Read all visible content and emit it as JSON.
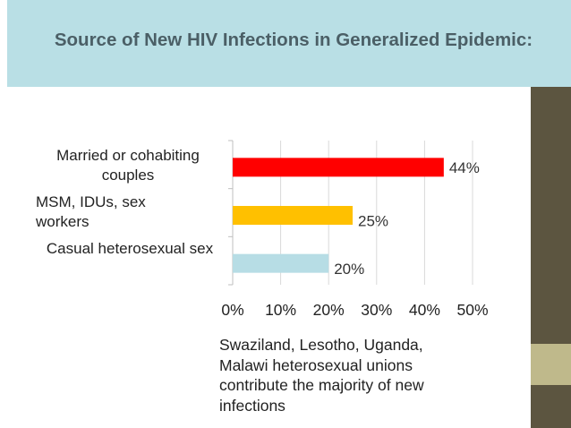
{
  "title": "Source of New HIV Infections in Generalized Epidemic:",
  "colors": {
    "title_bg": "#b9dfe5",
    "title_text": "#4b5f66",
    "strip_dark": "#5c5540",
    "strip_light": "#bfb98b"
  },
  "chart_data": {
    "type": "bar",
    "orientation": "horizontal",
    "categories": [
      "Married or cohabiting couples",
      "MSM, IDUs, sex workers",
      "Casual heterosexual sex"
    ],
    "values": [
      44,
      25,
      20
    ],
    "value_labels": [
      "44%",
      "25%",
      "20%"
    ],
    "bar_colors": [
      "#ff0000",
      "#ffc000",
      "#b7dde5"
    ],
    "xlim": [
      0,
      50
    ],
    "xticks": [
      "0%",
      "10%",
      "20%",
      "30%",
      "40%",
      "50%"
    ],
    "title": "",
    "xlabel": "",
    "ylabel": "",
    "grid": true
  },
  "note": "Swaziland, Lesotho, Uganda,\nMalawi heterosexual unions\ncontribute the majority of new\ninfections"
}
